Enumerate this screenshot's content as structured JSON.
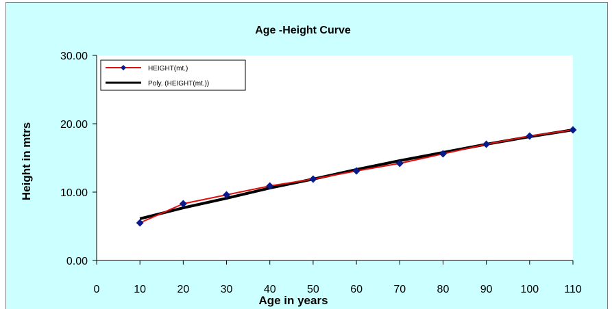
{
  "chart_data": {
    "type": "line",
    "title": "Age -Height Curve",
    "xlabel": "Age in years",
    "ylabel": "Height in mtrs",
    "x_ticks": [
      "0",
      "10",
      "20",
      "30",
      "40",
      "50",
      "60",
      "70",
      "80",
      "90",
      "100",
      "110"
    ],
    "y_ticks": [
      "0.00",
      "10.00",
      "20.00",
      "30.00"
    ],
    "xlim": [
      0,
      110
    ],
    "ylim": [
      0,
      30
    ],
    "grid": false,
    "legend_position": "top-left",
    "series": [
      {
        "name": "HEIGHT(mt.)",
        "color": "#e01010",
        "marker": "diamond",
        "marker_color": "#0a1a8a",
        "x": [
          10,
          20,
          30,
          40,
          50,
          60,
          70,
          80,
          90,
          100,
          110
        ],
        "y": [
          5.5,
          8.3,
          9.6,
          10.9,
          11.9,
          13.1,
          14.2,
          15.6,
          17.0,
          18.2,
          19.1
        ]
      },
      {
        "name": "Poly. (HEIGHT(mt.))",
        "color": "#000000",
        "marker": "none",
        "x": [
          10,
          20,
          30,
          40,
          50,
          60,
          70,
          80,
          90,
          100,
          110
        ],
        "y": [
          6.1,
          7.7,
          9.1,
          10.6,
          11.9,
          13.3,
          14.6,
          15.8,
          17.0,
          18.1,
          19.1
        ]
      }
    ]
  }
}
